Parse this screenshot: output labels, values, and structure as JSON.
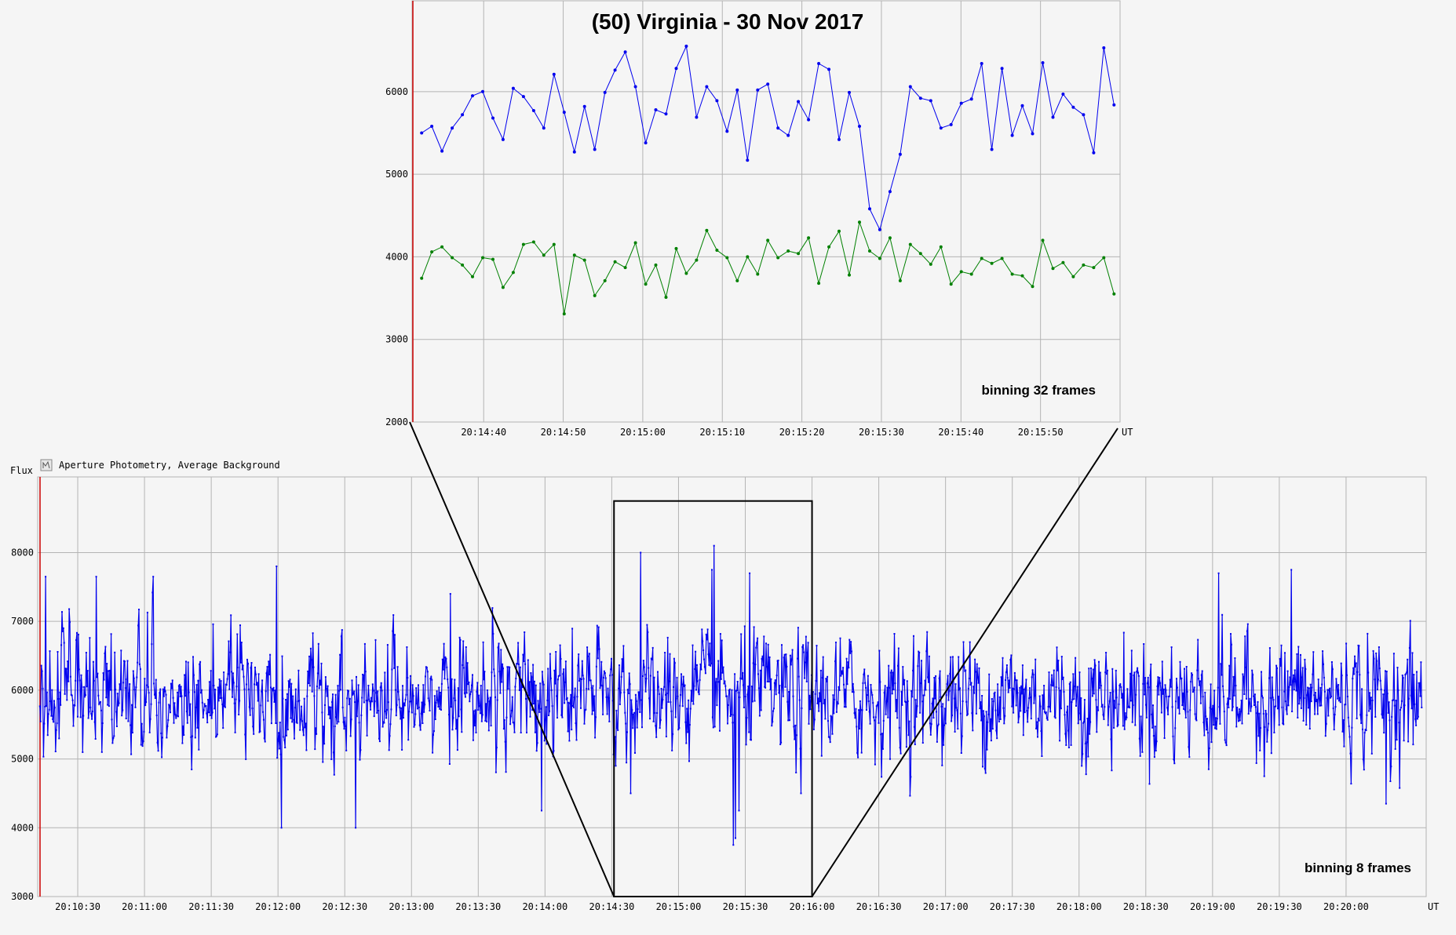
{
  "chart_data": [
    {
      "type": "line",
      "title": "(50) Virginia - 30 Nov 2017",
      "annotation": "binning 32 frames",
      "x_unit_label": "UT",
      "y_ticks": [
        2000,
        3000,
        4000,
        5000,
        6000
      ],
      "ylim": [
        2000,
        7100
      ],
      "x_tick_labels": [
        "20:14:40",
        "20:14:50",
        "20:15:00",
        "20:15:10",
        "20:15:20",
        "20:15:30",
        "20:15:40",
        "20:15:50"
      ],
      "x_tick_seconds": [
        880,
        890,
        900,
        910,
        920,
        930,
        940,
        950
      ],
      "xlim_seconds": [
        871,
        960
      ],
      "x_start_seconds": 872.2,
      "x_step_seconds": 1.28,
      "series": [
        {
          "color": "#0000ee",
          "values": [
            5500,
            5580,
            5280,
            5560,
            5720,
            5950,
            6000,
            5680,
            5420,
            6040,
            5940,
            5770,
            5560,
            6210,
            5750,
            5270,
            5820,
            5300,
            5990,
            6260,
            6480,
            6060,
            5380,
            5780,
            5730,
            6280,
            6550,
            5690,
            6060,
            5890,
            5520,
            6020,
            5170,
            6020,
            6090,
            5560,
            5470,
            5880,
            5660,
            6340,
            6270,
            5420,
            5990,
            5580,
            4580,
            4330,
            4790,
            5240,
            6060,
            5920,
            5890,
            5560,
            5600,
            5860,
            5910,
            6340,
            5300,
            6280,
            5470,
            5830,
            5490,
            6350,
            5690,
            5970,
            5810,
            5720,
            5260,
            6530,
            5840
          ]
        },
        {
          "color": "#008000",
          "values": [
            3740,
            4060,
            4120,
            3990,
            3900,
            3760,
            3990,
            3970,
            3630,
            3810,
            4150,
            4180,
            4020,
            4150,
            3310,
            4020,
            3960,
            3530,
            3710,
            3940,
            3870,
            4170,
            3670,
            3900,
            3510,
            4100,
            3800,
            3960,
            4320,
            4080,
            3990,
            3710,
            4000,
            3790,
            4200,
            3990,
            4070,
            4040,
            4230,
            3680,
            4120,
            4310,
            3780,
            4420,
            4070,
            3980,
            4230,
            3710,
            4150,
            4040,
            3910,
            4120,
            3670,
            3820,
            3790,
            3980,
            3920,
            3980,
            3790,
            3770,
            3640,
            4200,
            3860,
            3930,
            3760,
            3900,
            3870,
            3990,
            3550
          ]
        }
      ]
    },
    {
      "type": "line",
      "header": "Aperture Photometry, Average Background",
      "ylabel": "Flux",
      "annotation": "binning 8 frames",
      "x_unit_label": "UT",
      "y_ticks": [
        3000,
        4000,
        5000,
        6000,
        7000,
        8000
      ],
      "ylim": [
        3000,
        9100
      ],
      "x_tick_labels": [
        "20:10:30",
        "20:11:00",
        "20:11:30",
        "20:12:00",
        "20:12:30",
        "20:13:00",
        "20:13:30",
        "20:14:00",
        "20:14:30",
        "20:15:00",
        "20:15:30",
        "20:16:00",
        "20:16:30",
        "20:17:00",
        "20:17:30",
        "20:18:00",
        "20:18:30",
        "20:19:00",
        "20:19:30",
        "20:20:00"
      ],
      "x_tick_seconds": [
        630,
        660,
        690,
        720,
        750,
        780,
        810,
        840,
        870,
        900,
        930,
        960,
        990,
        1020,
        1050,
        1080,
        1110,
        1140,
        1170,
        1200
      ],
      "xlim_seconds": [
        612,
        1236
      ],
      "data_x_range_seconds": [
        613,
        1234
      ],
      "n_points": 1940,
      "series_color": "#0000ee",
      "series_mean": 5900,
      "series_spread": 650,
      "series_min": 3750,
      "series_max": 8100,
      "zoom_window_seconds": [
        871,
        960
      ],
      "zoom_window_flux": [
        3000,
        8750
      ],
      "notable_points": [
        {
          "t": 610.6,
          "flux": 7050
        },
        {
          "t": 615.6,
          "flux": 7650
        },
        {
          "t": 638.2,
          "flux": 7650
        },
        {
          "t": 663.8,
          "flux": 7650
        },
        {
          "t": 719.2,
          "flux": 7800
        },
        {
          "t": 721.6,
          "flux": 4000
        },
        {
          "t": 754.8,
          "flux": 4000
        },
        {
          "t": 797.4,
          "flux": 7400
        },
        {
          "t": 838.4,
          "flux": 4250
        },
        {
          "t": 883.0,
          "flux": 8000
        },
        {
          "t": 878.6,
          "flux": 4500
        },
        {
          "t": 915.0,
          "flux": 7750
        },
        {
          "t": 916.0,
          "flux": 8100
        },
        {
          "t": 924.6,
          "flux": 3750
        },
        {
          "t": 925.6,
          "flux": 3850
        },
        {
          "t": 927.2,
          "flux": 4250
        },
        {
          "t": 932.0,
          "flux": 7700
        },
        {
          "t": 955.2,
          "flux": 4500
        },
        {
          "t": 1142.6,
          "flux": 7700
        },
        {
          "t": 1175.4,
          "flux": 7750
        },
        {
          "t": 1218.0,
          "flux": 4350
        }
      ]
    }
  ]
}
